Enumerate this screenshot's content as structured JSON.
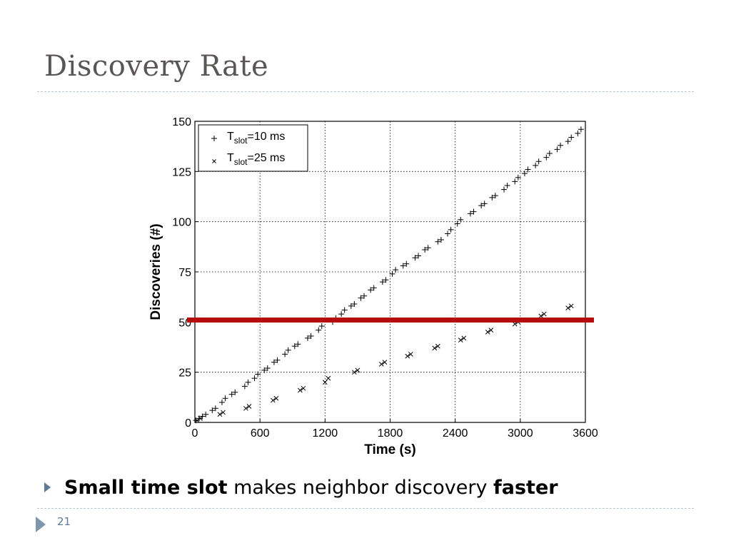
{
  "slide": {
    "title": "Discovery Rate",
    "bullet": {
      "part1": "Small time slot",
      "part2": " makes neighbor discovery ",
      "part3": "faster"
    },
    "page_number": "21"
  },
  "chart_data": {
    "type": "scatter",
    "title": "",
    "xlabel": "Time (s)",
    "ylabel": "Discoveries (#)",
    "xlim": [
      0,
      3600
    ],
    "ylim": [
      0,
      150
    ],
    "xticks": [
      0,
      600,
      1200,
      1800,
      2400,
      3000,
      3600
    ],
    "yticks": [
      0,
      25,
      50,
      75,
      100,
      125,
      150
    ],
    "grid": true,
    "legend_position": "top-left",
    "series": [
      {
        "name": "T_slot=10 ms",
        "legend_main": "T",
        "legend_sub": "slot",
        "legend_tail": "=10 ms",
        "marker": "plus",
        "x": [
          10,
          40,
          70,
          100,
          160,
          190,
          250,
          280,
          340,
          370,
          460,
          490,
          550,
          580,
          640,
          670,
          730,
          760,
          830,
          860,
          920,
          950,
          1040,
          1070,
          1140,
          1170,
          1270,
          1300,
          1350,
          1380,
          1440,
          1470,
          1530,
          1560,
          1620,
          1650,
          1730,
          1760,
          1820,
          1850,
          1920,
          1950,
          2030,
          2060,
          2120,
          2150,
          2240,
          2270,
          2330,
          2360,
          2420,
          2450,
          2540,
          2570,
          2640,
          2670,
          2740,
          2770,
          2850,
          2880,
          2950,
          2980,
          3040,
          3070,
          3140,
          3170,
          3240,
          3270,
          3340,
          3370,
          3440,
          3470,
          3530,
          3560
        ],
        "y": [
          1,
          2,
          3,
          4,
          6,
          7,
          10,
          12,
          14,
          15,
          18,
          20,
          22,
          24,
          26,
          27,
          30,
          31,
          34,
          36,
          38,
          39,
          42,
          43,
          46,
          48,
          50,
          52,
          54,
          56,
          58,
          59,
          62,
          63,
          66,
          67,
          70,
          71,
          74,
          76,
          78,
          79,
          82,
          83,
          86,
          87,
          90,
          91,
          94,
          96,
          99,
          101,
          104,
          105,
          108,
          109,
          112,
          113,
          116,
          118,
          120,
          122,
          124,
          126,
          128,
          130,
          132,
          134,
          136,
          138,
          140,
          142,
          144,
          146
        ]
      },
      {
        "name": "T_slot=25 ms",
        "legend_main": "T",
        "legend_sub": "slot",
        "legend_tail": "=25 ms",
        "marker": "x",
        "x": [
          20,
          50,
          230,
          260,
          470,
          500,
          720,
          750,
          970,
          1000,
          1200,
          1230,
          1470,
          1500,
          1720,
          1750,
          1960,
          1990,
          2210,
          2240,
          2450,
          2480,
          2700,
          2730,
          2950,
          2980,
          3190,
          3220,
          3440,
          3470
        ],
        "y": [
          1,
          2,
          4,
          5,
          7,
          8,
          11,
          12,
          16,
          17,
          20,
          22,
          25,
          26,
          29,
          30,
          33,
          34,
          37,
          38,
          41,
          42,
          45,
          46,
          49,
          50,
          53,
          54,
          57,
          58
        ]
      }
    ],
    "annotation": {
      "type": "horizontal-line",
      "y": 51,
      "color": "#b50d0d",
      "extends_to": "slide-right"
    }
  }
}
